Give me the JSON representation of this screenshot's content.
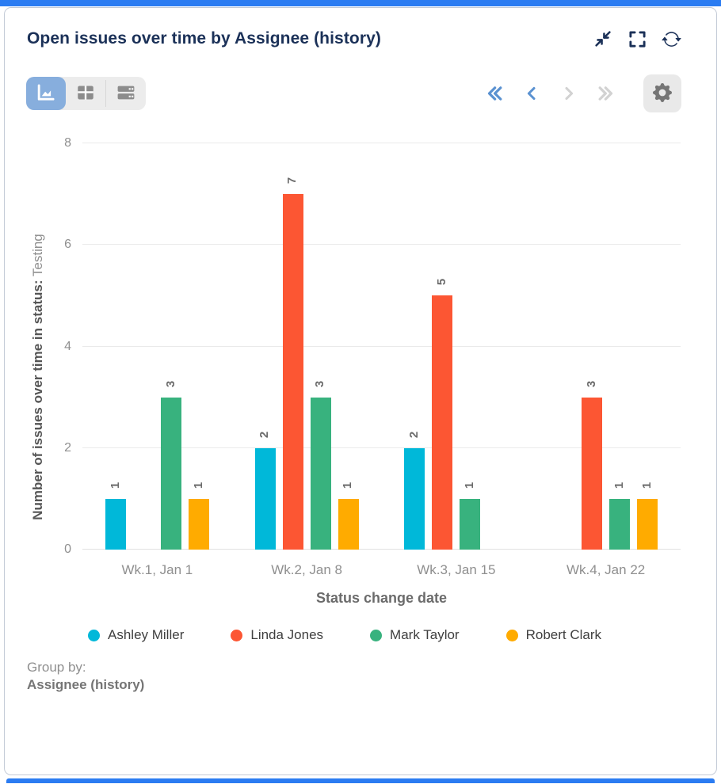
{
  "colors": {
    "accent": "#2b7cf2",
    "title_text": "#1b3158",
    "active_toggle": "#87aedd",
    "pager_enabled": "#5b92d1",
    "pager_disabled": "#d2d2d2"
  },
  "header": {
    "title": "Open issues over time by Assignee (history)",
    "icons": [
      "collapse-icon",
      "fullscreen-icon",
      "refresh-icon"
    ]
  },
  "toolbar": {
    "active_view": "chart",
    "views": [
      {
        "id": "chart",
        "icon": "area-chart-icon"
      },
      {
        "id": "table",
        "icon": "table-icon"
      },
      {
        "id": "rows",
        "icon": "rows-icon"
      }
    ],
    "pagination": {
      "first_enabled": true,
      "prev_enabled": true,
      "next_enabled": false,
      "last_enabled": false
    },
    "settings_icon": "gear-icon"
  },
  "chart_data": {
    "type": "bar",
    "title": "Open issues over time by Assignee (history)",
    "categories": [
      "Wk.1, Jan 1",
      "Wk.2, Jan 8",
      "Wk.3, Jan 15",
      "Wk.4, Jan 22"
    ],
    "series": [
      {
        "name": "Ashley Miller",
        "color": "#00b8d9",
        "values": [
          1,
          2,
          2,
          0
        ]
      },
      {
        "name": "Linda Jones",
        "color": "#fc5633",
        "values": [
          0,
          7,
          5,
          3
        ]
      },
      {
        "name": "Mark Taylor",
        "color": "#38b27e",
        "values": [
          3,
          3,
          1,
          1
        ]
      },
      {
        "name": "Robert Clark",
        "color": "#ffab00",
        "values": [
          1,
          1,
          0,
          1
        ]
      }
    ],
    "xlabel": "Status change date",
    "ylabel_bold_part": "Number of issues over time in status:",
    "ylabel_light_part": " Testing",
    "ylim": [
      0,
      8
    ],
    "yticks": [
      0,
      2,
      4,
      6,
      8
    ],
    "grid": true,
    "value_labels": true,
    "legend_position": "bottom"
  },
  "footer": {
    "group_by_label": "Group by:",
    "group_by_value": "Assignee (history)"
  }
}
